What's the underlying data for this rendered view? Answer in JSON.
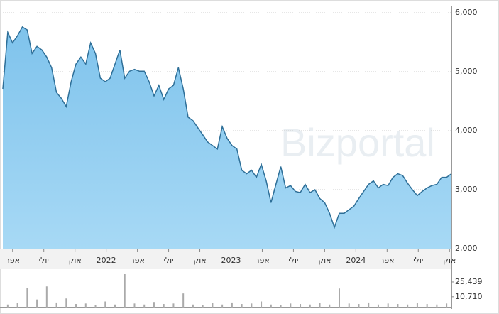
{
  "watermark": "Bizportal",
  "chart_data": [
    {
      "type": "area",
      "color": "#8ecdf0",
      "line_color": "#2e6f98",
      "grid": true,
      "xlim": [
        0,
        92
      ],
      "xticks": [
        {
          "value": 2,
          "label": "אפר"
        },
        {
          "value": 8.4,
          "label": "יולי"
        },
        {
          "value": 14.8,
          "label": "אוק"
        },
        {
          "value": 21.2,
          "label": "2022"
        },
        {
          "value": 27.6,
          "label": "אפר"
        },
        {
          "value": 34,
          "label": "יולי"
        },
        {
          "value": 40.4,
          "label": "אוק"
        },
        {
          "value": 46.8,
          "label": "2023"
        },
        {
          "value": 53.2,
          "label": "אפר"
        },
        {
          "value": 59.6,
          "label": "יולי"
        },
        {
          "value": 66,
          "label": "אוק"
        },
        {
          "value": 72.4,
          "label": "2024"
        },
        {
          "value": 78.8,
          "label": "אפר"
        },
        {
          "value": 85.2,
          "label": "יולי"
        },
        {
          "value": 91.6,
          "label": "אוק"
        }
      ],
      "ylim": [
        2000,
        6000
      ],
      "yticks": [
        {
          "value": 2000,
          "label": "2,000"
        },
        {
          "value": 3000,
          "label": "3,000"
        },
        {
          "value": 4000,
          "label": "4,000"
        },
        {
          "value": 5000,
          "label": "5,000"
        },
        {
          "value": 6000,
          "label": "6,000"
        }
      ],
      "values": [
        4710,
        5670,
        5490,
        5610,
        5760,
        5710,
        5310,
        5430,
        5370,
        5250,
        5070,
        4650,
        4550,
        4410,
        4830,
        5130,
        5250,
        5130,
        5490,
        5310,
        4890,
        4830,
        4890,
        5130,
        5370,
        4890,
        5010,
        5040,
        5010,
        5010,
        4830,
        4590,
        4770,
        4530,
        4710,
        4770,
        5070,
        4710,
        4230,
        4170,
        4050,
        3930,
        3810,
        3750,
        3690,
        4070,
        3870,
        3750,
        3690,
        3330,
        3270,
        3330,
        3210,
        3430,
        3150,
        2780,
        3090,
        3390,
        3030,
        3070,
        2970,
        2950,
        3090,
        2950,
        3000,
        2850,
        2780,
        2600,
        2360,
        2600,
        2600,
        2660,
        2720,
        2850,
        2970,
        3090,
        3150,
        3030,
        3090,
        3070,
        3210,
        3270,
        3240,
        3110,
        3000,
        2900,
        2970,
        3030,
        3070,
        3090,
        3210,
        3210,
        3270
      ]
    },
    {
      "type": "bar",
      "color": "#aaaaaa",
      "ylim": [
        0,
        36000
      ],
      "yticks": [
        {
          "value": 10710,
          "label": "10,710"
        },
        {
          "value": 25439,
          "label": "25,439"
        }
      ],
      "values": [
        3000,
        4500,
        19600,
        8000,
        21000,
        5000,
        9000,
        3500,
        4000,
        2500,
        6000,
        3000,
        33600,
        4000,
        3000,
        5500,
        3500,
        4000,
        14000,
        3000,
        2500,
        4500,
        3000,
        5000,
        3500,
        4000,
        6000,
        3000,
        2500,
        4000,
        3500,
        3000,
        4500,
        3000,
        18900,
        4000,
        3500,
        5000,
        3000,
        4000,
        3500,
        3000,
        4500,
        3500,
        3000,
        4000
      ]
    }
  ]
}
